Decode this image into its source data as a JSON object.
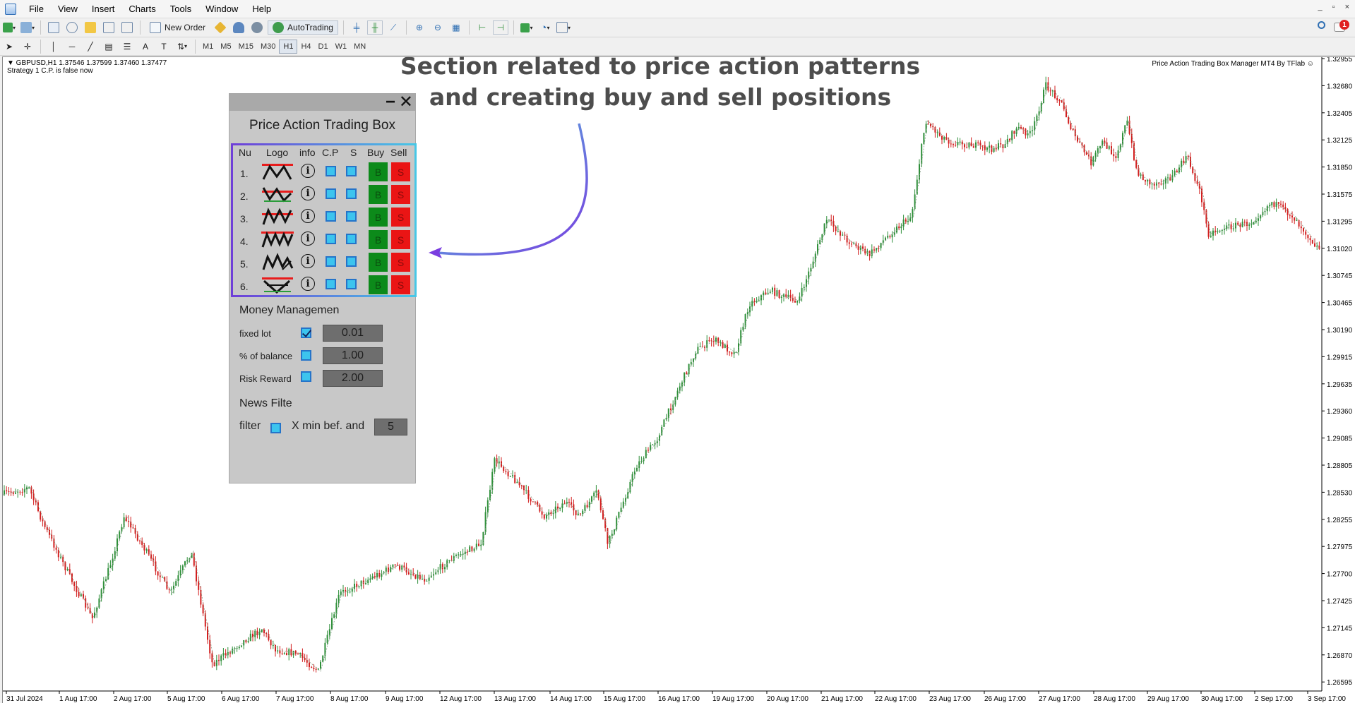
{
  "menu": [
    "File",
    "View",
    "Insert",
    "Charts",
    "Tools",
    "Window",
    "Help"
  ],
  "window_controls": [
    "_",
    "▫",
    "×"
  ],
  "toolbar": {
    "new_order_label": "New Order",
    "autotrading_label": "AutoTrading",
    "timeframes": [
      "M1",
      "M5",
      "M15",
      "M30",
      "H1",
      "H4",
      "D1",
      "W1",
      "MN"
    ],
    "active_timeframe": "H1",
    "notification_count": "1"
  },
  "chart": {
    "header_line1": "▼ GBPUSD,H1  1.37546 1.37599 1.37460 1.37477",
    "header_line2": "Strategy 1 C.P. is false now",
    "brand": "Price Action Trading Box Manager MT4 By TFlab ☺",
    "price_labels": [
      "1.32955",
      "1.32680",
      "1.32405",
      "1.32125",
      "1.31850",
      "1.31575",
      "1.31295",
      "1.31020",
      "1.30745",
      "1.30465",
      "1.30190",
      "1.29915",
      "1.29635",
      "1.29360",
      "1.29085",
      "1.28805",
      "1.28530",
      "1.28255",
      "1.27975",
      "1.27700",
      "1.27425",
      "1.27145",
      "1.26870",
      "1.26595"
    ],
    "date_labels": [
      "31 Jul 2024",
      "1 Aug 17:00",
      "2 Aug 17:00",
      "5 Aug 17:00",
      "6 Aug 17:00",
      "7 Aug 17:00",
      "8 Aug 17:00",
      "9 Aug 17:00",
      "12 Aug 17:00",
      "13 Aug 17:00",
      "14 Aug 17:00",
      "15 Aug 17:00",
      "16 Aug 17:00",
      "19 Aug 17:00",
      "20 Aug 17:00",
      "21 Aug 17:00",
      "22 Aug 17:00",
      "23 Aug 17:00",
      "26 Aug 17:00",
      "27 Aug 17:00",
      "28 Aug 17:00",
      "29 Aug 17:00",
      "30 Aug 17:00",
      "2 Sep 17:00",
      "3 Sep 17:00"
    ],
    "up_color": "#2f8f3a",
    "down_color": "#d21f1f"
  },
  "annotation": {
    "line1": "Section related to price action patterns",
    "line2": "and creating buy and sell positions",
    "arrow_color_start": "#4fc6dc",
    "arrow_color_end": "#7a3de0"
  },
  "panel": {
    "title": "Price Action Trading Box",
    "headers": {
      "nu": "Nu",
      "logo": "Logo",
      "info": "info",
      "cp": "C.P",
      "s": "S",
      "buy": "Buy",
      "sell": "Sell"
    },
    "rows": [
      {
        "num": "1.",
        "info": "i",
        "buy": "B",
        "sell": "S"
      },
      {
        "num": "2.",
        "info": "i",
        "buy": "B",
        "sell": "S"
      },
      {
        "num": "3.",
        "info": "i",
        "buy": "B",
        "sell": "S"
      },
      {
        "num": "4.",
        "info": "i",
        "buy": "B",
        "sell": "S"
      },
      {
        "num": "5.",
        "info": "i",
        "buy": "B",
        "sell": "S"
      },
      {
        "num": "6.",
        "info": "i",
        "buy": "B",
        "sell": "S"
      }
    ],
    "money_management": {
      "title": "Money Managemen",
      "fixed_lot_label": "fixed lot",
      "fixed_lot_value": "0.01",
      "fixed_lot_checked": true,
      "pct_balance_label": "% of balance",
      "pct_balance_value": "1.00",
      "risk_reward_label": "Risk Reward",
      "risk_reward_value": "2.00"
    },
    "news_filter": {
      "title": "News Filte",
      "filter_label": "filter",
      "minutes_label": "X min bef. and",
      "minutes_value": "5"
    }
  }
}
